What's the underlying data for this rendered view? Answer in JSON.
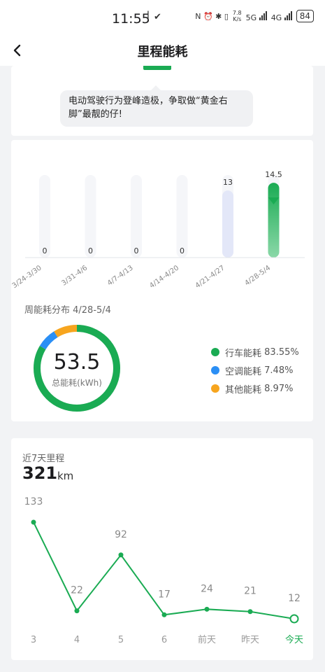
{
  "status_bar": {
    "time": "11:55",
    "left_icons": "ꟾ ✔",
    "right_icons": "N ⏰ ✱ ▯",
    "net_speed_top": "7.8",
    "net_speed_bottom": "K/s",
    "sig1": "5G",
    "sig2": "4G",
    "battery": "84"
  },
  "nav": {
    "title": "里程能耗",
    "back_icon": "chevron-left-icon"
  },
  "bubble": {
    "text": "电动驾驶行为登峰造极，争取做“黄金右脚”最靓的仔!"
  },
  "colors": {
    "green": "#1aab53",
    "blue": "#2b8ff5",
    "orange": "#f7a51e",
    "track": "#f5f6f9",
    "lavender": "#e3e7f8"
  },
  "chart_data": [
    {
      "type": "bar",
      "categories": [
        "3/24-3/30",
        "3/31-4/6",
        "4/7-4/13",
        "4/14-4/20",
        "4/21-4/27",
        "4/28-5/4"
      ],
      "values": [
        0,
        0,
        0,
        0,
        13,
        14.5
      ],
      "value_labels": [
        "0",
        "0",
        "0",
        "0",
        "13",
        "14.5"
      ],
      "ylim": [
        0,
        16
      ],
      "selected_index": 5
    },
    {
      "type": "pie",
      "title": "周能耗分布 4/28-5/4",
      "total": "53.5",
      "total_label": "总能耗(kWh)",
      "labels": [
        "行车能耗",
        "空调能耗",
        "其他能耗"
      ],
      "values": [
        83.55,
        7.48,
        8.97
      ],
      "value_labels": [
        "83.55%",
        "7.48%",
        "8.97%"
      ],
      "colors": [
        "#1aab53",
        "#2b8ff5",
        "#f7a51e"
      ]
    },
    {
      "type": "line",
      "title": "近7天里程",
      "total": "321",
      "unit": "km",
      "categories": [
        "3",
        "4",
        "5",
        "6",
        "前天",
        "昨天",
        "今天"
      ],
      "values": [
        133,
        22,
        92,
        17,
        24,
        21,
        12
      ],
      "ylim": [
        0,
        140
      ]
    }
  ]
}
